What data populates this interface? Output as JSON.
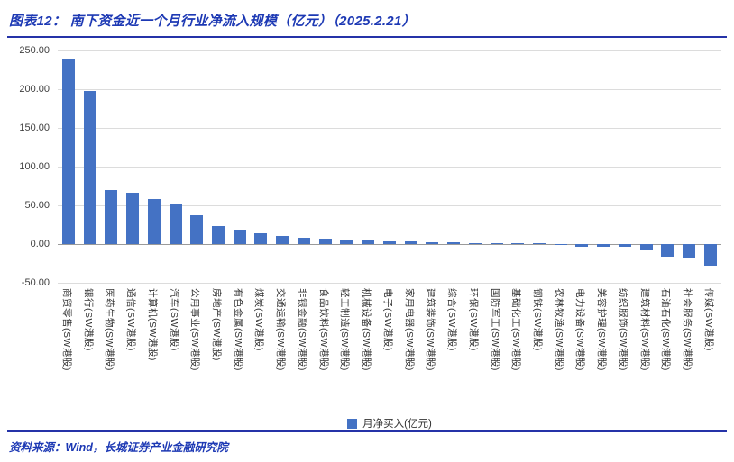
{
  "header": {
    "title": "图表12：  南下资金近一个月行业净流入规模（亿元）（2025.2.21）"
  },
  "legend": {
    "label": "月净买入(亿元)"
  },
  "footer": {
    "source": "资料来源：Wind，长城证券产业金融研究院"
  },
  "colors": {
    "bar": "#4472C4",
    "title_blue": "#1D39B4",
    "gridline": "#DCDCDC",
    "zero_line": "#9A9A9A"
  },
  "chart_data": {
    "type": "bar",
    "title": "南下资金近一个月行业净流入规模（亿元）（2025.2.21）",
    "legend": [
      "月净买入(亿元)"
    ],
    "legend_position": "bottom",
    "grid": true,
    "ylim": [
      -50,
      250
    ],
    "ytick_labels": [
      "250.00",
      "200.00",
      "150.00",
      "100.00",
      "50.00",
      "0.00",
      "-50.00"
    ],
    "categories": [
      "商贸零售(SW港股)",
      "银行(SW港股)",
      "医药生物(SW港股)",
      "通信(SW港股)",
      "计算机(SW港股)",
      "汽车(SW港股)",
      "公用事业(SW港股)",
      "房地产(SW港股)",
      "有色金属(SW港股)",
      "煤炭(SW港股)",
      "交通运输(SW港股)",
      "非银金融(SW港股)",
      "食品饮料(SW港股)",
      "轻工制造(SW港股)",
      "机械设备(SW港股)",
      "电子(SW港股)",
      "家用电器(SW港股)",
      "建筑装饰(SW港股)",
      "综合(SW港股)",
      "环保(SW港股)",
      "国防军工(SW港股)",
      "基础化工(SW港股)",
      "钢铁(SW港股)",
      "农林牧渔(SW港股)",
      "电力设备(SW港股)",
      "美容护理(SW港股)",
      "纺织服饰(SW港股)",
      "建筑材料(SW港股)",
      "石油石化(SW港股)",
      "社会服务(SW港股)",
      "传媒(SW港股)"
    ],
    "values": [
      239.8,
      198.0,
      69.5,
      66.0,
      58.5,
      51.0,
      37.0,
      23.0,
      19.0,
      14.5,
      11.0,
      8.5,
      6.5,
      5.0,
      4.5,
      4.0,
      3.0,
      2.5,
      2.0,
      1.5,
      0.8,
      0.5,
      0.3,
      -0.5,
      -3.0,
      -3.5,
      -4.0,
      -8.0,
      -16.0,
      -17.0,
      -27.5
    ]
  }
}
